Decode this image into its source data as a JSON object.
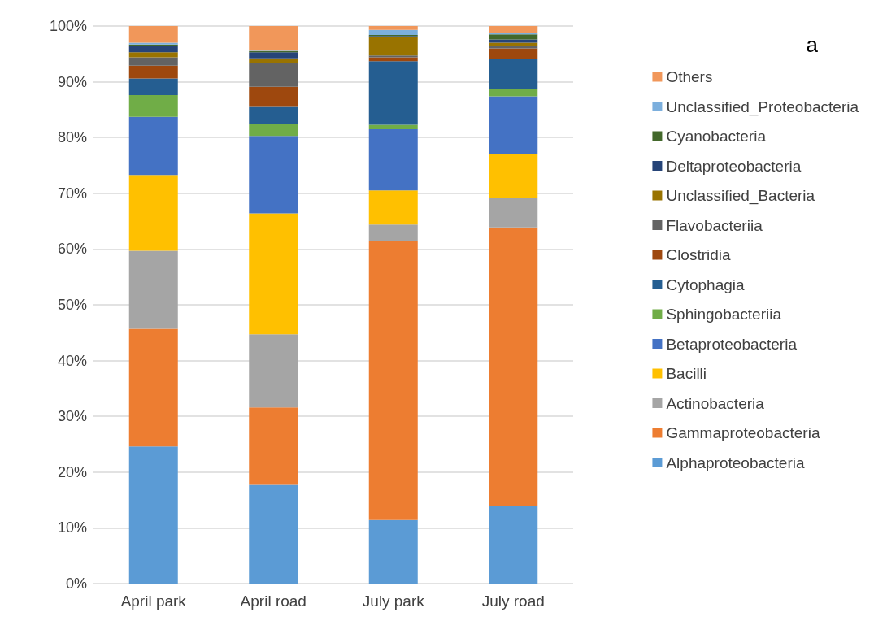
{
  "chart_data": {
    "type": "bar",
    "stacked": true,
    "categories": [
      "April park",
      "April road",
      "July park",
      "July road"
    ],
    "series": [
      {
        "name": "Alphaproteobacteria",
        "color": "#5b9bd5",
        "values": [
          24.6,
          17.7,
          11.4,
          13.9
        ]
      },
      {
        "name": "Gammaproteobacteria",
        "color": "#ed7d31",
        "values": [
          21.1,
          13.9,
          50.0,
          50.0
        ]
      },
      {
        "name": "Actinobacteria",
        "color": "#a5a5a5",
        "values": [
          14.0,
          13.1,
          3.0,
          5.2
        ]
      },
      {
        "name": "Bacilli",
        "color": "#ffc000",
        "values": [
          13.6,
          21.7,
          6.1,
          8.0
        ]
      },
      {
        "name": "Betaproteobacteria",
        "color": "#4472c4",
        "values": [
          10.4,
          13.9,
          11.0,
          10.3
        ]
      },
      {
        "name": "Sphingobacteriia",
        "color": "#70ad47",
        "values": [
          3.9,
          2.2,
          0.8,
          1.3
        ]
      },
      {
        "name": "Cytophagia",
        "color": "#255e91",
        "values": [
          3.0,
          3.0,
          11.4,
          5.4
        ]
      },
      {
        "name": "Clostridia",
        "color": "#9e480e",
        "values": [
          2.3,
          3.6,
          0.7,
          1.9
        ]
      },
      {
        "name": "Flavobacteriia",
        "color": "#636363",
        "values": [
          1.5,
          4.2,
          0.3,
          0.4
        ]
      },
      {
        "name": "Unclassified_Bacteria",
        "color": "#997300",
        "values": [
          0.9,
          0.9,
          3.3,
          0.6
        ]
      },
      {
        "name": "Deltaproteobacteria",
        "color": "#264478",
        "values": [
          1.1,
          1.1,
          0.2,
          0.6
        ]
      },
      {
        "name": "Cyanobacteria",
        "color": "#43682b",
        "values": [
          0.3,
          0.2,
          0.2,
          0.9
        ]
      },
      {
        "name": "Unclassified_Proteobacteria",
        "color": "#7cafdd",
        "values": [
          0.3,
          0.1,
          0.9,
          0.2
        ]
      },
      {
        "name": "Others",
        "color": "#f1975a",
        "values": [
          3.0,
          4.4,
          0.7,
          1.3
        ]
      }
    ],
    "ylim": [
      0,
      100
    ],
    "yticks": [
      {
        "value": 0,
        "label": "0%"
      },
      {
        "value": 10,
        "label": "10%"
      },
      {
        "value": 20,
        "label": "20%"
      },
      {
        "value": 30,
        "label": "30%"
      },
      {
        "value": 40,
        "label": "40%"
      },
      {
        "value": 50,
        "label": "50%"
      },
      {
        "value": 60,
        "label": "60%"
      },
      {
        "value": 70,
        "label": "70%"
      },
      {
        "value": 80,
        "label": "80%"
      },
      {
        "value": 90,
        "label": "90%"
      },
      {
        "value": 100,
        "label": "100%"
      }
    ],
    "grid": "y",
    "legend": "right",
    "annotations": [
      "a"
    ]
  }
}
